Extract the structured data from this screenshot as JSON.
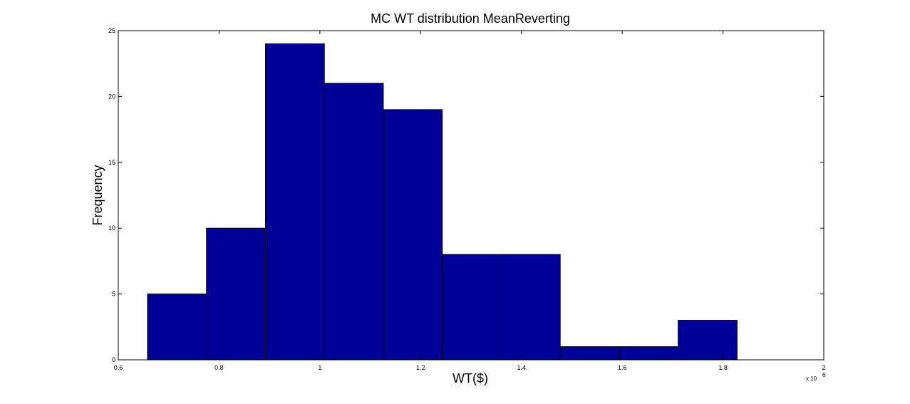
{
  "chart_data": {
    "type": "bar",
    "title": "MC WT distribution MeanReverting",
    "xlabel": "WT($)",
    "ylabel": "Frequency",
    "x_multiplier_label": "x 10",
    "x_multiplier_exponent": "6",
    "xlim": [
      0.6,
      2.0
    ],
    "ylim": [
      0,
      25
    ],
    "grid": false,
    "legend": "none",
    "x_ticks": [
      0.6,
      0.8,
      1.0,
      1.2,
      1.4,
      1.6,
      1.8,
      2.0
    ],
    "x_tick_labels": [
      "0.6",
      "0.8",
      "1",
      "1.2",
      "1.4",
      "1.6",
      "1.8",
      "2"
    ],
    "y_ticks": [
      0,
      5,
      10,
      15,
      20,
      25
    ],
    "y_tick_labels": [
      "0",
      "5",
      "10",
      "15",
      "20",
      "25"
    ],
    "bin_edges": [
      0.658,
      0.775,
      0.892,
      1.009,
      1.126,
      1.243,
      1.36,
      1.477,
      1.594,
      1.711,
      1.828
    ],
    "values": [
      5,
      10,
      24,
      21,
      19,
      8,
      8,
      1,
      1,
      3
    ],
    "colors": {
      "bar_fill": "#000099",
      "bar_edge": "#000000",
      "axis": "#000000",
      "background": "#ffffff"
    }
  }
}
